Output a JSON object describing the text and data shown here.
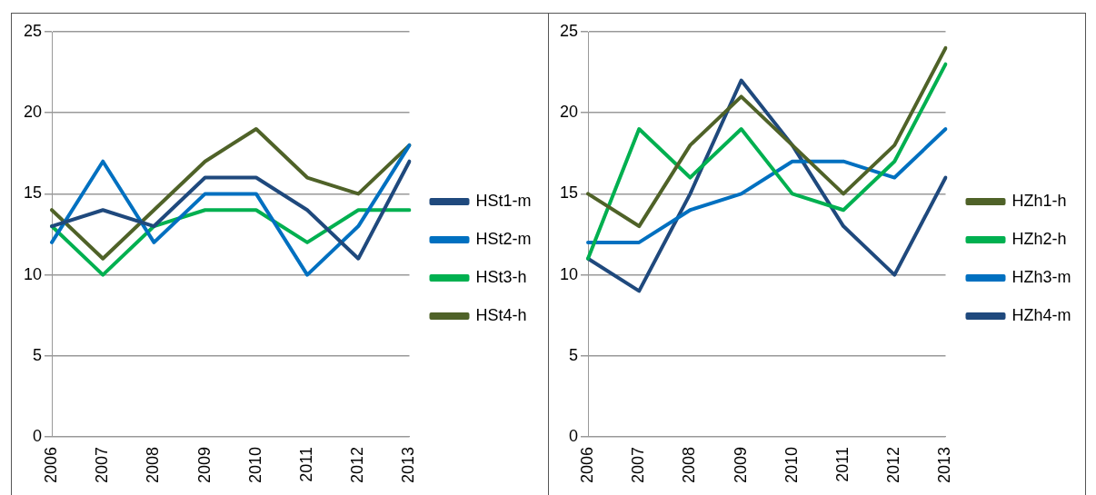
{
  "chart_data": [
    {
      "type": "line",
      "categories": [
        "2006",
        "2007",
        "2008",
        "2009",
        "2010",
        "2011",
        "2012",
        "2013"
      ],
      "ylim": [
        0,
        25
      ],
      "yticks": [
        0,
        5,
        10,
        15,
        20,
        25
      ],
      "grid": "y",
      "legend": "right",
      "marker": "none",
      "line_style": "solid",
      "series": [
        {
          "name": "HSt1-m",
          "color": "#1f497d",
          "values": [
            13,
            14,
            13,
            16,
            16,
            14,
            11,
            17
          ]
        },
        {
          "name": "HSt2-m",
          "color": "#0070c0",
          "values": [
            12,
            17,
            12,
            15,
            15,
            10,
            13,
            18
          ]
        },
        {
          "name": "HSt3-h",
          "color": "#00b050",
          "values": [
            13,
            10,
            13,
            14,
            14,
            12,
            14,
            14
          ]
        },
        {
          "name": "HSt4-h",
          "color": "#4f6228",
          "values": [
            14,
            11,
            14,
            17,
            19,
            16,
            15,
            18
          ]
        }
      ]
    },
    {
      "type": "line",
      "categories": [
        "2006",
        "2007",
        "2008",
        "2009",
        "2010",
        "2011",
        "2012",
        "2013"
      ],
      "ylim": [
        0,
        25
      ],
      "yticks": [
        0,
        5,
        10,
        15,
        20,
        25
      ],
      "grid": "y",
      "legend": "right",
      "marker": "none",
      "line_style": "solid",
      "series": [
        {
          "name": "HZh1-h",
          "color": "#4f6228",
          "values": [
            15,
            13,
            18,
            21,
            18,
            15,
            18,
            24
          ]
        },
        {
          "name": "HZh2-h",
          "color": "#00b050",
          "values": [
            11,
            19,
            16,
            19,
            15,
            14,
            17,
            23
          ]
        },
        {
          "name": "HZh3-m",
          "color": "#0070c0",
          "values": [
            12,
            12,
            14,
            15,
            17,
            17,
            16,
            19
          ]
        },
        {
          "name": "HZh4-m",
          "color": "#1f497d",
          "values": [
            11,
            9,
            15,
            22,
            18,
            13,
            10,
            16
          ]
        }
      ]
    }
  ]
}
